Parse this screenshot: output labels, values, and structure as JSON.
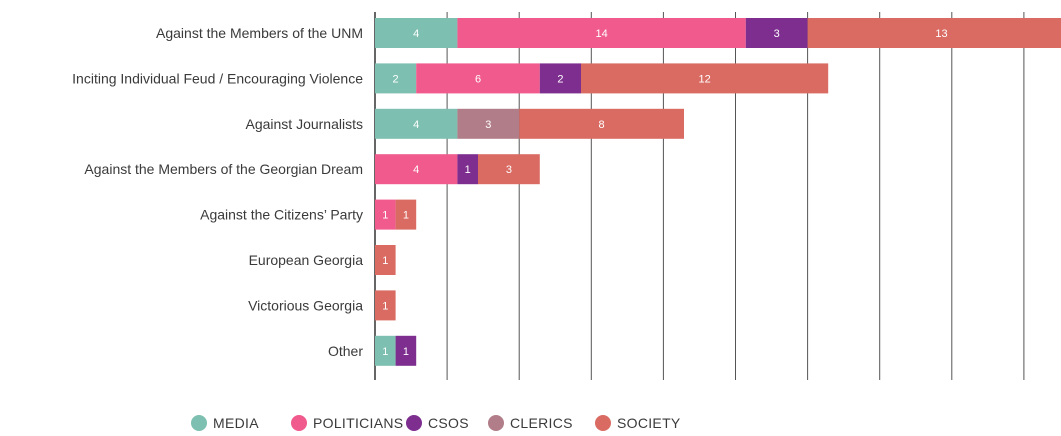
{
  "chart_data": {
    "type": "bar",
    "orientation": "horizontal",
    "stacked": true,
    "categories": [
      "Against the Members of the UNM",
      "Inciting Individual Feud / Encouraging Violence",
      "Against Journalists",
      "Against the Members of the Georgian Dream",
      "Against the Citizens’ Party",
      "European Georgia",
      "Victorious Georgia",
      "Other"
    ],
    "series": [
      {
        "name": "MEDIA",
        "color": "#7dbfb0",
        "values": [
          4,
          2,
          4,
          0,
          0,
          0,
          0,
          1
        ]
      },
      {
        "name": "POLITICIANS",
        "color": "#f05a8c",
        "values": [
          14,
          6,
          0,
          4,
          1,
          0,
          0,
          0
        ]
      },
      {
        "name": "CSOS",
        "color": "#7d2e8f",
        "values": [
          3,
          2,
          0,
          1,
          0,
          0,
          0,
          1
        ]
      },
      {
        "name": "CLERICS",
        "color": "#b07d88",
        "values": [
          0,
          0,
          3,
          0,
          0,
          0,
          0,
          0
        ]
      },
      {
        "name": "SOCIETY",
        "color": "#d96b62",
        "values": [
          13,
          12,
          8,
          3,
          1,
          1,
          1,
          0
        ]
      }
    ],
    "xlim": [
      0,
      36
    ],
    "grid": true,
    "legend_position": "bottom"
  }
}
